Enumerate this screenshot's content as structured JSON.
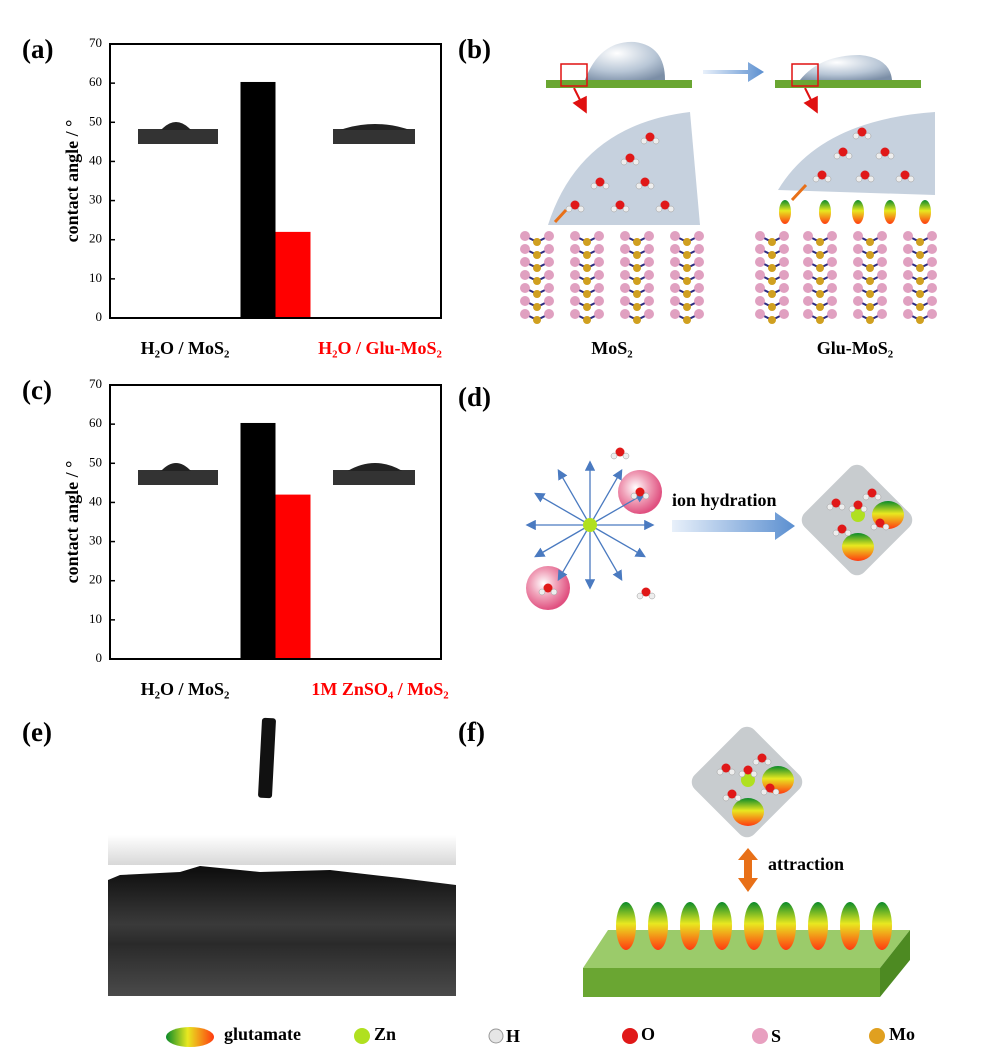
{
  "chart_data": [
    {
      "type": "bar",
      "label": "(a)",
      "ylabel": "contact angle / °",
      "categories": [
        "H₂O / MoS₂",
        "H₂O / Glu-MoS₂"
      ],
      "category_colors": [
        "#000000",
        "#ff0000"
      ],
      "values": [
        60.3,
        22
      ],
      "colors": [
        "#000000",
        "#ff0000"
      ],
      "ylim": [
        0,
        70
      ],
      "yticks": [
        0,
        10,
        20,
        30,
        40,
        50,
        60,
        70
      ]
    },
    {
      "type": "bar",
      "label": "(c)",
      "ylabel": "contact angle / °",
      "categories": [
        "H₂O / MoS₂",
        "1M ZnSO₄ / MoS₂"
      ],
      "category_colors": [
        "#000000",
        "#ff0000"
      ],
      "values": [
        60.3,
        42
      ],
      "colors": [
        "#000000",
        "#ff0000"
      ],
      "ylim": [
        0,
        70
      ],
      "yticks": [
        0,
        10,
        20,
        30,
        40,
        50,
        60,
        70
      ]
    }
  ],
  "panels": {
    "b": {
      "label": "(b)",
      "left": "MoS₂",
      "right": "Glu-MoS₂"
    },
    "d": {
      "label": "(d)",
      "arrow": "ion hydration"
    },
    "e": {
      "label": "(e)"
    },
    "f": {
      "label": "(f)",
      "arrow": "attraction"
    }
  },
  "legend": [
    "glutamate",
    "Zn",
    "H",
    "O",
    "S",
    "Mo"
  ]
}
